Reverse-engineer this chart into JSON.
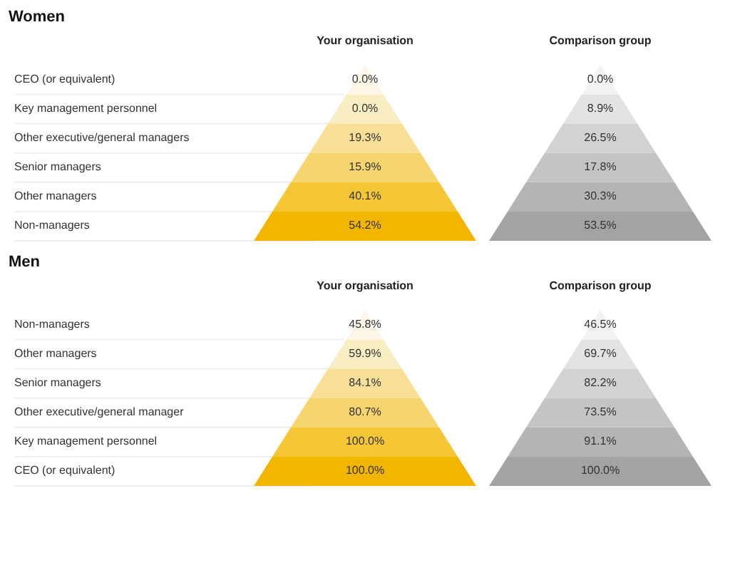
{
  "chart_data": [
    {
      "type": "other",
      "title": "Women",
      "categories": [
        "CEO (or equivalent)",
        "Key management personnel",
        "Other executive/general managers",
        "Senior managers",
        "Other managers",
        "Non-managers"
      ],
      "series": [
        {
          "name": "Your organisation",
          "colors": [
            "#fbf6e6",
            "#f9edc4",
            "#f8df97",
            "#f6d46e",
            "#f4c636",
            "#f2b600"
          ],
          "values": [
            0.0,
            0.0,
            19.3,
            15.9,
            40.1,
            54.2
          ],
          "value_labels": [
            "0.0%",
            "0.0%",
            "19.3%",
            "15.9%",
            "40.1%",
            "54.2%"
          ]
        },
        {
          "name": "Comparison group",
          "colors": [
            "#f2f2f2",
            "#e3e3e4",
            "#d2d2d4",
            "#c4c4c6",
            "#b4b4b6",
            "#a3a3a5"
          ],
          "values": [
            0.0,
            8.9,
            26.5,
            17.8,
            30.3,
            53.5
          ],
          "value_labels": [
            "0.0%",
            "8.9%",
            "26.5%",
            "17.8%",
            "30.3%",
            "53.5%"
          ]
        }
      ]
    },
    {
      "type": "other",
      "title": "Men",
      "categories": [
        "Non-managers",
        "Other managers",
        "Senior managers",
        "Other executive/general manager",
        "Key management personnel",
        "CEO (or equivalent)"
      ],
      "series": [
        {
          "name": "Your organisation",
          "colors": [
            "#fbf6e6",
            "#f9edc4",
            "#f8df97",
            "#f6d46e",
            "#f4c636",
            "#f2b600"
          ],
          "values": [
            45.8,
            59.9,
            84.1,
            80.7,
            100.0,
            100.0
          ],
          "value_labels": [
            "45.8%",
            "59.9%",
            "84.1%",
            "80.7%",
            "100.0%",
            "100.0%"
          ]
        },
        {
          "name": "Comparison group",
          "colors": [
            "#f2f2f2",
            "#e3e3e4",
            "#d2d2d4",
            "#c4c4c6",
            "#b4b4b6",
            "#a3a3a5"
          ],
          "values": [
            46.5,
            69.7,
            82.2,
            73.5,
            91.1,
            100.0
          ],
          "value_labels": [
            "46.5%",
            "69.7%",
            "82.2%",
            "73.5%",
            "91.1%",
            "100.0%"
          ]
        }
      ]
    }
  ]
}
